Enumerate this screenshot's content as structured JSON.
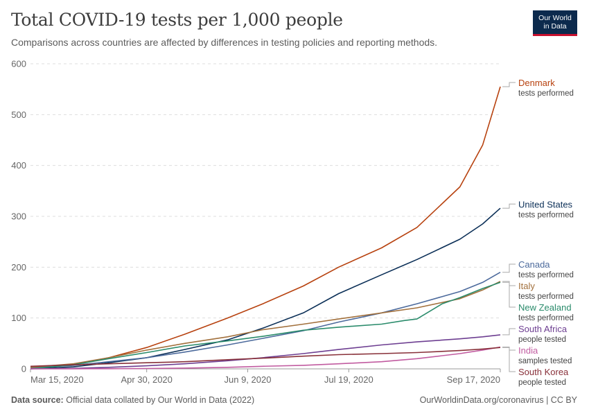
{
  "header": {
    "title": "Total COVID-19 tests per 1,000 people",
    "subtitle": "Comparisons across countries are affected by differences in testing policies and reporting methods.",
    "logo_line1": "Our World",
    "logo_line2": "in Data"
  },
  "footer": {
    "source_label": "Data source:",
    "source_text": "Official data collated by Our World in Data (2022)",
    "credit": "OurWorldinData.org/coronavirus | CC BY"
  },
  "chart_data": {
    "type": "line",
    "title": "Total COVID-19 tests per 1,000 people",
    "x_tick_labels": [
      "Mar 15, 2020",
      "Apr 30, 2020",
      "Jun 9, 2020",
      "Jul 19, 2020",
      "Sep 17, 2020"
    ],
    "x_tick_dates": [
      "2020-03-15",
      "2020-04-30",
      "2020-06-09",
      "2020-07-19",
      "2020-09-17"
    ],
    "xlim": [
      "2020-03-15",
      "2020-09-17"
    ],
    "y_ticks": [
      0,
      100,
      200,
      300,
      400,
      500,
      600
    ],
    "ylim": [
      0,
      600
    ],
    "grid": "horizontal dashed",
    "legend": "right-end labels",
    "series": [
      {
        "name": "Denmark",
        "sublabel": "tests performed",
        "color": "#b7410e",
        "points": [
          [
            "2020-03-15",
            2
          ],
          [
            "2020-04-01",
            8
          ],
          [
            "2020-04-15",
            22
          ],
          [
            "2020-04-30",
            42
          ],
          [
            "2020-05-15",
            68
          ],
          [
            "2020-06-01",
            100
          ],
          [
            "2020-06-15",
            128
          ],
          [
            "2020-07-01",
            163
          ],
          [
            "2020-07-15",
            200
          ],
          [
            "2020-08-01",
            238
          ],
          [
            "2020-08-15",
            278
          ],
          [
            "2020-09-01",
            358
          ],
          [
            "2020-09-10",
            440
          ],
          [
            "2020-09-17",
            555
          ]
        ]
      },
      {
        "name": "United States",
        "sublabel": "tests performed",
        "color": "#0b2f57",
        "points": [
          [
            "2020-03-15",
            0
          ],
          [
            "2020-04-01",
            4
          ],
          [
            "2020-04-15",
            12
          ],
          [
            "2020-04-30",
            22
          ],
          [
            "2020-05-15",
            38
          ],
          [
            "2020-06-01",
            57
          ],
          [
            "2020-06-15",
            80
          ],
          [
            "2020-07-01",
            110
          ],
          [
            "2020-07-15",
            148
          ],
          [
            "2020-08-01",
            185
          ],
          [
            "2020-08-15",
            215
          ],
          [
            "2020-09-01",
            255
          ],
          [
            "2020-09-10",
            285
          ],
          [
            "2020-09-17",
            316
          ]
        ]
      },
      {
        "name": "Canada",
        "sublabel": "tests performed",
        "color": "#4c6a9c",
        "points": [
          [
            "2020-03-15",
            2
          ],
          [
            "2020-04-01",
            7
          ],
          [
            "2020-04-15",
            14
          ],
          [
            "2020-04-30",
            22
          ],
          [
            "2020-05-15",
            33
          ],
          [
            "2020-06-01",
            47
          ],
          [
            "2020-06-15",
            60
          ],
          [
            "2020-07-01",
            75
          ],
          [
            "2020-07-15",
            92
          ],
          [
            "2020-08-01",
            110
          ],
          [
            "2020-08-15",
            128
          ],
          [
            "2020-09-01",
            152
          ],
          [
            "2020-09-10",
            170
          ],
          [
            "2020-09-17",
            190
          ]
        ]
      },
      {
        "name": "Italy",
        "sublabel": "tests performed",
        "color": "#a2703c",
        "points": [
          [
            "2020-03-15",
            3
          ],
          [
            "2020-04-01",
            10
          ],
          [
            "2020-04-15",
            22
          ],
          [
            "2020-04-30",
            37
          ],
          [
            "2020-05-15",
            50
          ],
          [
            "2020-06-01",
            63
          ],
          [
            "2020-06-15",
            77
          ],
          [
            "2020-07-01",
            88
          ],
          [
            "2020-07-15",
            98
          ],
          [
            "2020-08-01",
            110
          ],
          [
            "2020-08-15",
            120
          ],
          [
            "2020-09-01",
            138
          ],
          [
            "2020-09-10",
            155
          ],
          [
            "2020-09-17",
            172
          ]
        ]
      },
      {
        "name": "New Zealand",
        "sublabel": "tests performed",
        "color": "#2a8b6b",
        "points": [
          [
            "2020-03-15",
            0
          ],
          [
            "2020-04-01",
            8
          ],
          [
            "2020-04-15",
            20
          ],
          [
            "2020-04-30",
            32
          ],
          [
            "2020-05-15",
            45
          ],
          [
            "2020-06-01",
            55
          ],
          [
            "2020-06-15",
            64
          ],
          [
            "2020-07-01",
            76
          ],
          [
            "2020-07-15",
            82
          ],
          [
            "2020-08-01",
            88
          ],
          [
            "2020-08-10",
            95
          ],
          [
            "2020-08-15",
            98
          ],
          [
            "2020-08-25",
            128
          ],
          [
            "2020-09-01",
            140
          ],
          [
            "2020-09-10",
            158
          ],
          [
            "2020-09-17",
            170
          ]
        ]
      },
      {
        "name": "South Africa",
        "sublabel": "people tested",
        "color": "#6d3e91",
        "points": [
          [
            "2020-03-15",
            0
          ],
          [
            "2020-04-01",
            1
          ],
          [
            "2020-04-15",
            3
          ],
          [
            "2020-04-30",
            6
          ],
          [
            "2020-05-15",
            10
          ],
          [
            "2020-06-01",
            16
          ],
          [
            "2020-06-15",
            22
          ],
          [
            "2020-07-01",
            30
          ],
          [
            "2020-07-15",
            38
          ],
          [
            "2020-08-01",
            47
          ],
          [
            "2020-08-15",
            53
          ],
          [
            "2020-09-01",
            59
          ],
          [
            "2020-09-10",
            63
          ],
          [
            "2020-09-17",
            67
          ]
        ]
      },
      {
        "name": "India",
        "sublabel": "samples tested",
        "color": "#c15ba0",
        "points": [
          [
            "2020-03-15",
            0
          ],
          [
            "2020-04-01",
            0.1
          ],
          [
            "2020-04-15",
            0.3
          ],
          [
            "2020-04-30",
            0.7
          ],
          [
            "2020-05-15",
            1.5
          ],
          [
            "2020-06-01",
            3
          ],
          [
            "2020-06-15",
            5
          ],
          [
            "2020-07-01",
            7
          ],
          [
            "2020-07-15",
            10
          ],
          [
            "2020-08-01",
            14
          ],
          [
            "2020-08-15",
            20
          ],
          [
            "2020-09-01",
            30
          ],
          [
            "2020-09-10",
            37
          ],
          [
            "2020-09-17",
            43
          ]
        ]
      },
      {
        "name": "South Korea",
        "sublabel": "people tested",
        "color": "#883039",
        "points": [
          [
            "2020-03-15",
            5
          ],
          [
            "2020-04-01",
            8
          ],
          [
            "2020-04-15",
            10
          ],
          [
            "2020-04-30",
            12
          ],
          [
            "2020-05-15",
            14
          ],
          [
            "2020-06-01",
            18
          ],
          [
            "2020-06-15",
            21
          ],
          [
            "2020-07-01",
            25
          ],
          [
            "2020-07-15",
            28
          ],
          [
            "2020-08-01",
            30
          ],
          [
            "2020-08-15",
            32
          ],
          [
            "2020-09-01",
            36
          ],
          [
            "2020-09-10",
            39
          ],
          [
            "2020-09-17",
            42
          ]
        ]
      }
    ]
  }
}
